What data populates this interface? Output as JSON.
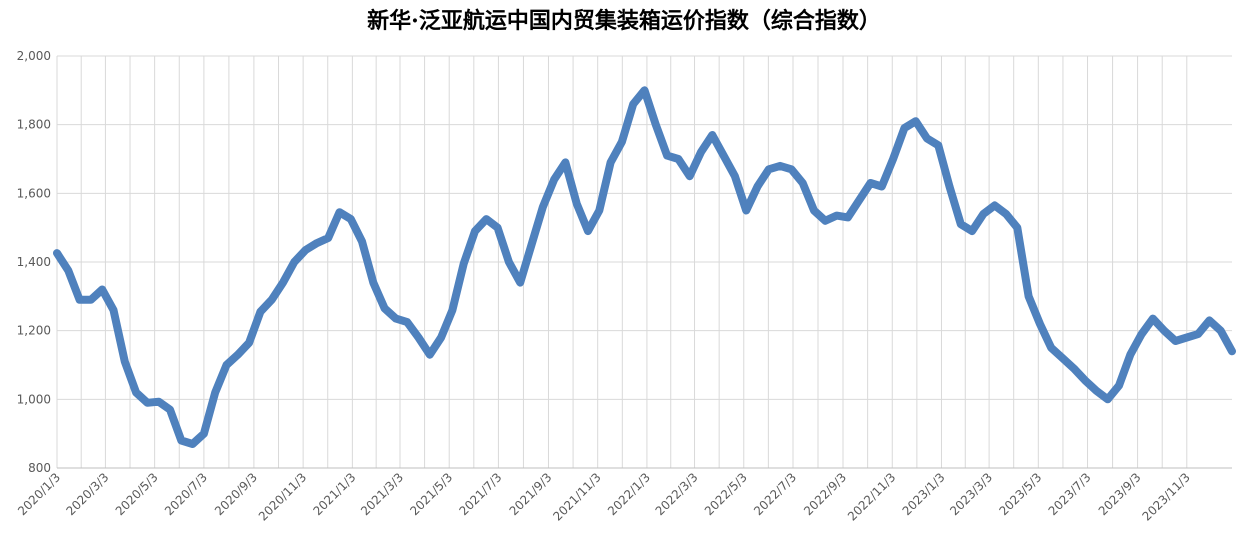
{
  "chart_data": {
    "type": "line",
    "title": "新华·泛亚航运中国内贸集装箱运价指数（综合指数）",
    "x": [
      "2020/1/3",
      "2020/1/17",
      "2020/1/31",
      "2020/2/14",
      "2020/2/28",
      "2020/3/13",
      "2020/3/27",
      "2020/4/10",
      "2020/4/24",
      "2020/5/8",
      "2020/5/22",
      "2020/6/5",
      "2020/6/19",
      "2020/7/3",
      "2020/7/17",
      "2020/7/31",
      "2020/8/14",
      "2020/8/28",
      "2020/9/11",
      "2020/9/25",
      "2020/10/9",
      "2020/10/23",
      "2020/11/6",
      "2020/11/20",
      "2020/12/4",
      "2020/12/18",
      "2021/1/1",
      "2021/1/15",
      "2021/1/29",
      "2021/2/12",
      "2021/2/26",
      "2021/3/12",
      "2021/3/26",
      "2021/4/9",
      "2021/4/23",
      "2021/5/7",
      "2021/5/21",
      "2021/6/4",
      "2021/6/18",
      "2021/7/2",
      "2021/7/16",
      "2021/7/30",
      "2021/8/13",
      "2021/8/27",
      "2021/9/10",
      "2021/9/24",
      "2021/10/8",
      "2021/10/22",
      "2021/11/5",
      "2021/11/19",
      "2021/12/3",
      "2021/12/17",
      "2021/12/31",
      "2022/1/14",
      "2022/1/28",
      "2022/2/11",
      "2022/2/25",
      "2022/3/11",
      "2022/3/25",
      "2022/4/8",
      "2022/4/22",
      "2022/5/6",
      "2022/5/20",
      "2022/6/3",
      "2022/6/17",
      "2022/7/1",
      "2022/7/15",
      "2022/7/29",
      "2022/8/12",
      "2022/8/26",
      "2022/9/9",
      "2022/9/23",
      "2022/10/7",
      "2022/10/21",
      "2022/11/4",
      "2022/11/18",
      "2022/12/2",
      "2022/12/16",
      "2022/12/30",
      "2023/1/13",
      "2023/1/27",
      "2023/2/10",
      "2023/2/24",
      "2023/3/10",
      "2023/3/24",
      "2023/4/7",
      "2023/4/21",
      "2023/5/5",
      "2023/5/19",
      "2023/6/2",
      "2023/6/16",
      "2023/6/30",
      "2023/7/14",
      "2023/7/28",
      "2023/8/11",
      "2023/8/25",
      "2023/9/8",
      "2023/9/22",
      "2023/10/6",
      "2023/10/20",
      "2023/11/3",
      "2023/11/17",
      "2023/12/1",
      "2023/12/15",
      "2023/12/29"
    ],
    "series": [
      {
        "name": "综合指数",
        "color": "#4f81bd",
        "values": [
          1426,
          1375,
          1290,
          1290,
          1320,
          1260,
          1110,
          1020,
          990,
          993,
          970,
          880,
          870,
          900,
          1020,
          1100,
          1130,
          1165,
          1255,
          1290,
          1340,
          1400,
          1435,
          1455,
          1470,
          1545,
          1525,
          1460,
          1340,
          1265,
          1235,
          1225,
          1180,
          1130,
          1180,
          1260,
          1395,
          1490,
          1525,
          1500,
          1400,
          1340,
          1450,
          1560,
          1640,
          1690,
          1570,
          1490,
          1550,
          1690,
          1750,
          1860,
          1900,
          1800,
          1710,
          1700,
          1650,
          1720,
          1770,
          1710,
          1650,
          1550,
          1620,
          1670,
          1680,
          1670,
          1630,
          1550,
          1520,
          1535,
          1530,
          1580,
          1630,
          1620,
          1700,
          1790,
          1810,
          1760,
          1740,
          1620,
          1510,
          1490,
          1540,
          1565,
          1540,
          1500,
          1300,
          1220,
          1150,
          1120,
          1090,
          1055,
          1025,
          1000,
          1040,
          1130,
          1190,
          1235,
          1200,
          1170,
          1180,
          1190,
          1230,
          1200,
          1140
        ]
      }
    ],
    "xlim": [
      "2020/1/3",
      "2023/12/29"
    ],
    "xticks": [
      "2020/1/3",
      "2020/3/3",
      "2020/5/3",
      "2020/7/3",
      "2020/9/3",
      "2020/11/3",
      "2021/1/3",
      "2021/3/3",
      "2021/5/3",
      "2021/7/3",
      "2021/9/3",
      "2021/11/3",
      "2022/1/3",
      "2022/3/3",
      "2022/5/3",
      "2022/7/3",
      "2022/9/3",
      "2022/11/3",
      "2023/1/3",
      "2023/3/3",
      "2023/5/3",
      "2023/7/3",
      "2023/9/3",
      "2023/11/3"
    ],
    "ylim": [
      800,
      2000
    ],
    "yticks": [
      800,
      {
        "value": 1000,
        "label": "1,000"
      },
      {
        "value": 1200,
        "label": "1,200"
      },
      {
        "value": 1400,
        "label": "1,400"
      },
      {
        "value": 1600,
        "label": "1,600"
      },
      {
        "value": 1800,
        "label": "1,800"
      },
      {
        "value": 2000,
        "label": "2,000"
      }
    ],
    "grid": true
  }
}
